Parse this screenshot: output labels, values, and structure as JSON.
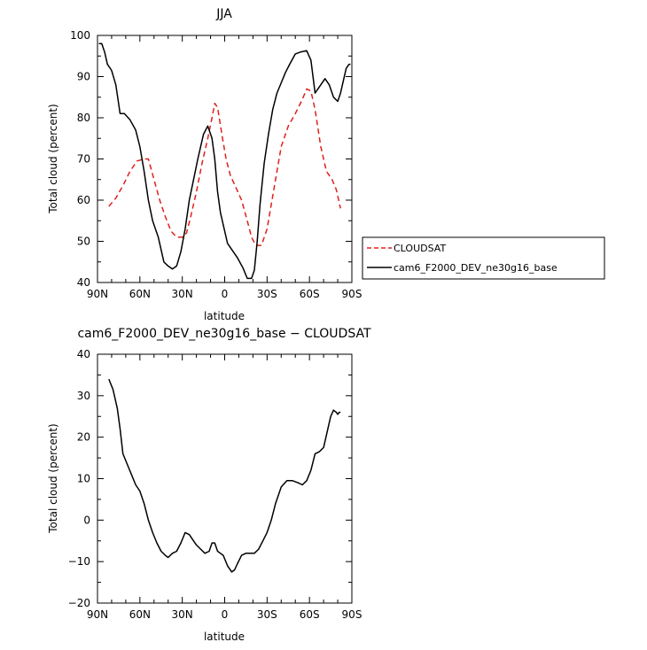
{
  "chart_data": [
    {
      "type": "line",
      "title": "JJA",
      "xlabel": "latitude",
      "ylabel": "Total cloud (percent)",
      "xlim": [
        90,
        -90
      ],
      "ylim": [
        40,
        100
      ],
      "x_ticks": [
        90,
        60,
        30,
        0,
        -30,
        -60,
        -90
      ],
      "x_tick_labels": [
        "90N",
        "60N",
        "30N",
        "0",
        "30S",
        "60S",
        "90S"
      ],
      "y_ticks": [
        40,
        50,
        60,
        70,
        80,
        90,
        100
      ],
      "y_tick_labels": [
        "40",
        "50",
        "60",
        "70",
        "80",
        "90",
        "100"
      ],
      "grid": false,
      "legend": "outside-right",
      "series": [
        {
          "name": "CLOUDSAT",
          "color": "#e0201b",
          "dash": "dashed",
          "x": [
            82,
            77,
            72,
            67,
            62,
            57,
            54,
            50,
            46,
            42,
            38,
            34,
            30,
            27,
            24,
            20,
            16,
            12,
            9,
            7,
            5,
            2,
            -1,
            -4,
            -8,
            -12,
            -16,
            -19,
            -22,
            -26,
            -30,
            -35,
            -40,
            -45,
            -50,
            -55,
            -58,
            -61,
            -64,
            -68,
            -72,
            -76,
            -79,
            -82
          ],
          "y": [
            58.5,
            60.5,
            63.5,
            67,
            69.5,
            70,
            70,
            65,
            60,
            56,
            52.5,
            51,
            51,
            52,
            56,
            62,
            69,
            75,
            80,
            83.5,
            82.5,
            76,
            70,
            66,
            63,
            60,
            55,
            51,
            49,
            49,
            53,
            63,
            73,
            78,
            81,
            84.5,
            87,
            86.5,
            82,
            73,
            67,
            65,
            62.5,
            58
          ]
        },
        {
          "name": "cam6_F2000_DEV_ne30g16_base",
          "color": "#000000",
          "dash": "solid",
          "x": [
            89,
            87,
            85,
            83,
            80,
            77,
            74,
            71,
            67,
            63,
            60,
            57,
            54,
            51,
            47,
            43,
            40,
            37,
            34,
            31,
            28,
            25,
            22,
            19,
            15,
            12,
            9,
            7,
            5,
            3,
            1,
            -2,
            -5,
            -9,
            -13,
            -16,
            -19,
            -21,
            -23,
            -25,
            -28,
            -31,
            -34,
            -37,
            -40,
            -43,
            -46,
            -50,
            -54,
            -58,
            -61,
            -64,
            -68,
            -71,
            -74,
            -77,
            -80,
            -82,
            -84,
            -86,
            -88,
            -89
          ],
          "y": [
            98,
            98,
            96,
            93,
            91.5,
            88,
            81,
            81,
            79.5,
            77,
            73,
            67,
            60,
            55,
            51,
            45,
            44,
            43.3,
            44,
            47.5,
            53,
            60,
            65,
            70,
            76,
            78,
            75,
            70,
            62,
            57,
            54,
            49.5,
            48,
            46,
            43.5,
            41,
            41,
            43,
            50,
            59,
            69,
            76,
            82,
            86,
            88.5,
            91,
            93,
            95.5,
            96,
            96.3,
            94,
            86,
            88,
            89.5,
            88,
            85,
            84,
            86,
            89,
            92,
            93,
            93
          ]
        }
      ]
    },
    {
      "type": "line",
      "title": "cam6_F2000_DEV_ne30g16_base − CLOUDSAT",
      "xlabel": "latitude",
      "ylabel": "Total cloud (percent)",
      "xlim": [
        90,
        -90
      ],
      "ylim": [
        -20,
        40
      ],
      "x_ticks": [
        90,
        60,
        30,
        0,
        -30,
        -60,
        -90
      ],
      "x_tick_labels": [
        "90N",
        "60N",
        "30N",
        "0",
        "30S",
        "60S",
        "90S"
      ],
      "y_ticks": [
        -20,
        -10,
        0,
        10,
        20,
        30,
        40
      ],
      "y_tick_labels": [
        "−20",
        "−10",
        "0",
        "10",
        "20",
        "30",
        "40"
      ],
      "grid": false,
      "series": [
        {
          "color": "#000000",
          "dash": "solid",
          "x": [
            82,
            79,
            76,
            74,
            72,
            69,
            66,
            63,
            60,
            57,
            54,
            51,
            48,
            45,
            42,
            40,
            37,
            34,
            31,
            28,
            25,
            22,
            20,
            17,
            14,
            11,
            9,
            7,
            5,
            3,
            1,
            -2,
            -5,
            -7,
            -9,
            -12,
            -15,
            -18,
            -21,
            -24,
            -27,
            -30,
            -33,
            -36,
            -40,
            -44,
            -48,
            -52,
            -55,
            -58,
            -61,
            -64,
            -67,
            -70,
            -73,
            -75,
            -77,
            -79,
            -80,
            -81,
            -82
          ],
          "y": [
            34,
            31.5,
            27,
            22,
            16,
            13.5,
            11,
            8.5,
            7,
            4,
            0,
            -3,
            -5.5,
            -7.5,
            -8.5,
            -9,
            -8,
            -7.5,
            -5.5,
            -3,
            -3.5,
            -5,
            -6,
            -7,
            -8,
            -7.5,
            -5.5,
            -5.5,
            -7.5,
            -8,
            -8.5,
            -11,
            -12.5,
            -12,
            -10.5,
            -8.5,
            -8,
            -8,
            -8,
            -7,
            -5,
            -3,
            0,
            4,
            8,
            9.5,
            9.5,
            9,
            8.5,
            9.5,
            12,
            16,
            16.5,
            17.5,
            22,
            25,
            26.5,
            26,
            25.5,
            26,
            26
          ]
        }
      ]
    }
  ]
}
